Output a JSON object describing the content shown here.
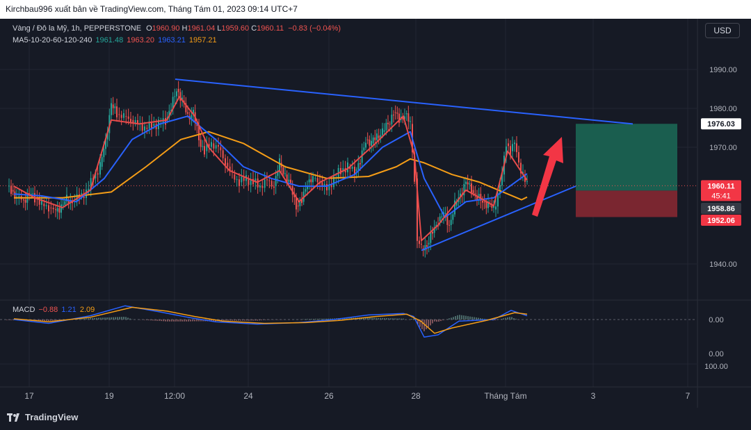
{
  "header": {
    "publish_text": "Kirchbau996 xuất bản về TradingView.com, Tháng Tám 01, 2023 09:14 UTC+7"
  },
  "footer": {
    "brand": "TradingView"
  },
  "currency_button": "USD",
  "symbol_legend": {
    "symbol": "Vàng / Đô la Mỹ, 1h, PEPPERSTONE",
    "open_label": "O",
    "open": "1960.90",
    "high_label": "H",
    "high": "1961.04",
    "low_label": "L",
    "low": "1959.60",
    "close_label": "C",
    "close": "1960.11",
    "change": "−0.83 (−0.04%)"
  },
  "ma_legend": {
    "label": "MA5-10-20-60-120-240",
    "v1": "1961.48",
    "v2": "1963.20",
    "v3": "1963.21",
    "v4": "1957.21"
  },
  "macd_legend": {
    "label": "MACD",
    "v1": "−0.88",
    "v2": "1.21",
    "v3": "2.09"
  },
  "colors": {
    "background": "#161a25",
    "up": "#26a69a",
    "down": "#ef5350",
    "ma_fast": "#e84b4b",
    "ma_mid": "#2962ff",
    "ma_slow": "#f59d17",
    "trendline": "#2962ff",
    "target_box": "#1a5e4f",
    "stop_box": "#7a2630"
  },
  "chart_data": {
    "type": "candlestick",
    "title": "Vàng / Đô la Mỹ, 1h, PEPPERSTONE",
    "x_ticks": [
      "17",
      "19",
      "12:00",
      "24",
      "26",
      "28",
      "Tháng Tám",
      "3",
      "7"
    ],
    "y_ticks": [
      "1990.00",
      "1980.00",
      "1970.00",
      "1940.00"
    ],
    "ylim": [
      1931,
      2001
    ],
    "grid": true,
    "close_series": [
      {
        "t": 0,
        "v": 1960.0
      },
      {
        "t": 6,
        "v": 1959.0
      },
      {
        "t": 14,
        "v": 1957.0
      },
      {
        "t": 24,
        "v": 1956.5
      },
      {
        "t": 32,
        "v": 1958.0
      },
      {
        "t": 40,
        "v": 1957.0
      },
      {
        "t": 50,
        "v": 1955.5
      },
      {
        "t": 60,
        "v": 1954.5
      },
      {
        "t": 70,
        "v": 1953.5
      },
      {
        "t": 78,
        "v": 1955.0
      },
      {
        "t": 86,
        "v": 1956.5
      },
      {
        "t": 94,
        "v": 1956.0
      },
      {
        "t": 104,
        "v": 1957.5
      },
      {
        "t": 114,
        "v": 1958.5
      },
      {
        "t": 124,
        "v": 1962.0
      },
      {
        "t": 134,
        "v": 1965.0
      },
      {
        "t": 142,
        "v": 1972.0
      },
      {
        "t": 150,
        "v": 1981.0
      },
      {
        "t": 158,
        "v": 1978.5
      },
      {
        "t": 168,
        "v": 1978.0
      },
      {
        "t": 178,
        "v": 1977.0
      },
      {
        "t": 188,
        "v": 1976.0
      },
      {
        "t": 198,
        "v": 1975.0
      },
      {
        "t": 208,
        "v": 1975.5
      },
      {
        "t": 218,
        "v": 1976.0
      },
      {
        "t": 228,
        "v": 1977.0
      },
      {
        "t": 236,
        "v": 1980.0
      },
      {
        "t": 244,
        "v": 1985.0
      },
      {
        "t": 252,
        "v": 1982.0
      },
      {
        "t": 260,
        "v": 1978.0
      },
      {
        "t": 268,
        "v": 1979.0
      },
      {
        "t": 276,
        "v": 1972.0
      },
      {
        "t": 284,
        "v": 1969.0
      },
      {
        "t": 294,
        "v": 1971.0
      },
      {
        "t": 304,
        "v": 1970.0
      },
      {
        "t": 314,
        "v": 1966.0
      },
      {
        "t": 324,
        "v": 1963.0
      },
      {
        "t": 334,
        "v": 1961.0
      },
      {
        "t": 344,
        "v": 1962.0
      },
      {
        "t": 354,
        "v": 1961.0
      },
      {
        "t": 364,
        "v": 1960.0
      },
      {
        "t": 374,
        "v": 1961.5
      },
      {
        "t": 384,
        "v": 1960.0
      },
      {
        "t": 392,
        "v": 1966.0
      },
      {
        "t": 400,
        "v": 1963.0
      },
      {
        "t": 408,
        "v": 1960.0
      },
      {
        "t": 416,
        "v": 1955.0
      },
      {
        "t": 424,
        "v": 1956.0
      },
      {
        "t": 432,
        "v": 1961.0
      },
      {
        "t": 440,
        "v": 1962.0
      },
      {
        "t": 450,
        "v": 1961.0
      },
      {
        "t": 460,
        "v": 1959.0
      },
      {
        "t": 470,
        "v": 1962.0
      },
      {
        "t": 480,
        "v": 1964.0
      },
      {
        "t": 490,
        "v": 1965.0
      },
      {
        "t": 500,
        "v": 1964.0
      },
      {
        "t": 508,
        "v": 1966.0
      },
      {
        "t": 516,
        "v": 1972.0
      },
      {
        "t": 524,
        "v": 1971.0
      },
      {
        "t": 532,
        "v": 1973.0
      },
      {
        "t": 540,
        "v": 1974.0
      },
      {
        "t": 548,
        "v": 1976.0
      },
      {
        "t": 556,
        "v": 1979.0
      },
      {
        "t": 564,
        "v": 1977.0
      },
      {
        "t": 572,
        "v": 1978.5
      },
      {
        "t": 580,
        "v": 1976.0
      },
      {
        "t": 586,
        "v": 1962.0
      },
      {
        "t": 590,
        "v": 1946.0
      },
      {
        "t": 596,
        "v": 1944.0
      },
      {
        "t": 604,
        "v": 1945.0
      },
      {
        "t": 612,
        "v": 1948.0
      },
      {
        "t": 620,
        "v": 1951.0
      },
      {
        "t": 628,
        "v": 1953.0
      },
      {
        "t": 636,
        "v": 1950.0
      },
      {
        "t": 644,
        "v": 1955.0
      },
      {
        "t": 652,
        "v": 1958.0
      },
      {
        "t": 660,
        "v": 1961.0
      },
      {
        "t": 668,
        "v": 1959.0
      },
      {
        "t": 676,
        "v": 1957.0
      },
      {
        "t": 684,
        "v": 1956.0
      },
      {
        "t": 692,
        "v": 1955.5
      },
      {
        "t": 700,
        "v": 1954.0
      },
      {
        "t": 706,
        "v": 1958.0
      },
      {
        "t": 712,
        "v": 1963.0
      },
      {
        "t": 718,
        "v": 1971.0
      },
      {
        "t": 724,
        "v": 1969.0
      },
      {
        "t": 730,
        "v": 1971.0
      },
      {
        "t": 736,
        "v": 1966.0
      },
      {
        "t": 742,
        "v": 1963.0
      },
      {
        "t": 748,
        "v": 1960.1
      }
    ],
    "ma_fast_series": [
      {
        "t": 10,
        "v": 1960.0
      },
      {
        "t": 40,
        "v": 1957.0
      },
      {
        "t": 80,
        "v": 1954.5
      },
      {
        "t": 120,
        "v": 1959.0
      },
      {
        "t": 150,
        "v": 1977.0
      },
      {
        "t": 190,
        "v": 1976.0
      },
      {
        "t": 230,
        "v": 1977.0
      },
      {
        "t": 248,
        "v": 1983.0
      },
      {
        "t": 270,
        "v": 1978.0
      },
      {
        "t": 290,
        "v": 1970.0
      },
      {
        "t": 320,
        "v": 1964.0
      },
      {
        "t": 360,
        "v": 1961.0
      },
      {
        "t": 392,
        "v": 1964.0
      },
      {
        "t": 420,
        "v": 1956.0
      },
      {
        "t": 450,
        "v": 1961.0
      },
      {
        "t": 490,
        "v": 1964.5
      },
      {
        "t": 530,
        "v": 1971.0
      },
      {
        "t": 570,
        "v": 1978.0
      },
      {
        "t": 586,
        "v": 1968.0
      },
      {
        "t": 596,
        "v": 1946.0
      },
      {
        "t": 620,
        "v": 1950.0
      },
      {
        "t": 660,
        "v": 1959.0
      },
      {
        "t": 700,
        "v": 1955.0
      },
      {
        "t": 720,
        "v": 1969.0
      },
      {
        "t": 748,
        "v": 1961.5
      }
    ],
    "ma_mid_series": [
      {
        "t": 10,
        "v": 1958.0
      },
      {
        "t": 50,
        "v": 1957.5
      },
      {
        "t": 100,
        "v": 1956.0
      },
      {
        "t": 140,
        "v": 1962.0
      },
      {
        "t": 180,
        "v": 1972.0
      },
      {
        "t": 220,
        "v": 1976.0
      },
      {
        "t": 260,
        "v": 1978.0
      },
      {
        "t": 300,
        "v": 1972.0
      },
      {
        "t": 340,
        "v": 1965.0
      },
      {
        "t": 380,
        "v": 1962.0
      },
      {
        "t": 420,
        "v": 1960.0
      },
      {
        "t": 460,
        "v": 1960.0
      },
      {
        "t": 500,
        "v": 1963.0
      },
      {
        "t": 540,
        "v": 1970.0
      },
      {
        "t": 580,
        "v": 1974.0
      },
      {
        "t": 600,
        "v": 1962.0
      },
      {
        "t": 630,
        "v": 1952.0
      },
      {
        "t": 660,
        "v": 1956.0
      },
      {
        "t": 700,
        "v": 1957.0
      },
      {
        "t": 748,
        "v": 1963.2
      }
    ],
    "ma_slow_series": [
      {
        "t": 10,
        "v": 1957.0
      },
      {
        "t": 80,
        "v": 1957.0
      },
      {
        "t": 150,
        "v": 1958.5
      },
      {
        "t": 200,
        "v": 1965.0
      },
      {
        "t": 250,
        "v": 1972.0
      },
      {
        "t": 290,
        "v": 1974.0
      },
      {
        "t": 340,
        "v": 1971.0
      },
      {
        "t": 400,
        "v": 1965.0
      },
      {
        "t": 460,
        "v": 1962.0
      },
      {
        "t": 520,
        "v": 1962.5
      },
      {
        "t": 560,
        "v": 1965.0
      },
      {
        "t": 580,
        "v": 1967.0
      },
      {
        "t": 600,
        "v": 1966.0
      },
      {
        "t": 640,
        "v": 1963.0
      },
      {
        "t": 680,
        "v": 1961.0
      },
      {
        "t": 720,
        "v": 1958.0
      },
      {
        "t": 740,
        "v": 1956.5
      },
      {
        "t": 748,
        "v": 1957.2
      }
    ],
    "trendlines": [
      {
        "from": {
          "t": 242,
          "v": 1987.5
        },
        "to": {
          "t": 900,
          "v": 1976.0
        }
      },
      {
        "from": {
          "t": 596,
          "v": 1943.5
        },
        "to": {
          "t": 818,
          "v": 1960.0
        }
      }
    ],
    "position_box": {
      "t_start": 818,
      "t_end": 964,
      "entry": 1958.86,
      "target": 1976.03,
      "stop": 1952.06
    },
    "price_labels": [
      {
        "text": "1976.03",
        "v": 1976.03,
        "kind": "target"
      },
      {
        "text": "1960.11",
        "v": 1960.11,
        "kind": "last",
        "countdown": "45:41"
      },
      {
        "text": "1958.86",
        "v": 1958.86,
        "kind": "entry"
      },
      {
        "text": "1952.06",
        "v": 1952.06,
        "kind": "stop"
      }
    ],
    "macd_panel": {
      "y_ticks": [
        "0.00",
        "0.00",
        "100.00"
      ],
      "macd_line": [
        {
          "t": 10,
          "v": 0.0
        },
        {
          "t": 60,
          "v": -0.5
        },
        {
          "t": 120,
          "v": 0.5
        },
        {
          "t": 170,
          "v": 1.8
        },
        {
          "t": 220,
          "v": 1.0
        },
        {
          "t": 260,
          "v": 0.3
        },
        {
          "t": 300,
          "v": -0.3
        },
        {
          "t": 360,
          "v": -0.6
        },
        {
          "t": 420,
          "v": -0.4
        },
        {
          "t": 470,
          "v": 0.0
        },
        {
          "t": 520,
          "v": 0.6
        },
        {
          "t": 570,
          "v": 0.8
        },
        {
          "t": 585,
          "v": 0.4
        },
        {
          "t": 600,
          "v": -2.3
        },
        {
          "t": 620,
          "v": -2.0
        },
        {
          "t": 650,
          "v": -0.2
        },
        {
          "t": 700,
          "v": 0.0
        },
        {
          "t": 725,
          "v": 1.2
        },
        {
          "t": 748,
          "v": 0.5
        }
      ],
      "signal_line": [
        {
          "t": 10,
          "v": 0.1
        },
        {
          "t": 60,
          "v": -0.3
        },
        {
          "t": 120,
          "v": 0.3
        },
        {
          "t": 180,
          "v": 1.6
        },
        {
          "t": 230,
          "v": 1.1
        },
        {
          "t": 270,
          "v": 0.4
        },
        {
          "t": 310,
          "v": -0.2
        },
        {
          "t": 370,
          "v": -0.5
        },
        {
          "t": 430,
          "v": -0.4
        },
        {
          "t": 480,
          "v": -0.1
        },
        {
          "t": 530,
          "v": 0.4
        },
        {
          "t": 575,
          "v": 0.7
        },
        {
          "t": 595,
          "v": -0.2
        },
        {
          "t": 615,
          "v": -1.8
        },
        {
          "t": 640,
          "v": -1.1
        },
        {
          "t": 690,
          "v": -0.1
        },
        {
          "t": 730,
          "v": 0.9
        },
        {
          "t": 748,
          "v": 0.7
        }
      ]
    }
  }
}
